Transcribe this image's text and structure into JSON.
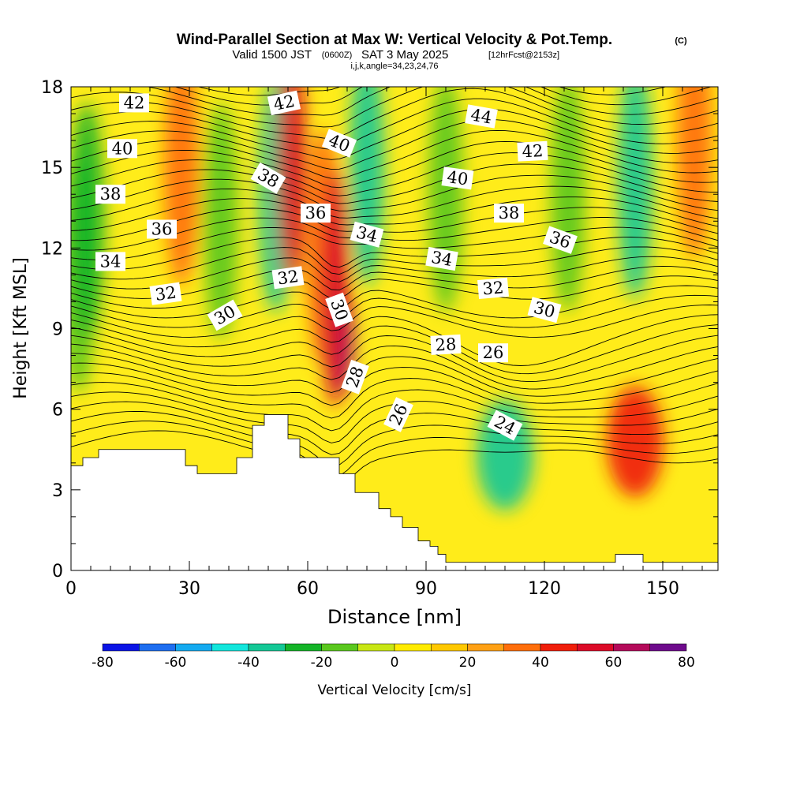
{
  "chart_data": {
    "type": "heatmap",
    "title": {
      "main": "Wind-Parallel Section at Max W: Vertical Velocity & Pot.Temp.",
      "copyright": "(C)",
      "valid_prefix": "Valid 1500 JST",
      "valid_utc": "(0600Z)",
      "valid_date": "SAT 3 May 2025",
      "forecast": "[12hrFcst@2153z]",
      "grid_info": "i,j,k,angle=34,23,24,76"
    },
    "xlabel": "Distance [nm]",
    "ylabel": "Height [Kft MSL]",
    "xlim": [
      0,
      164
    ],
    "ylim": [
      0,
      18
    ],
    "x_ticks": [
      0,
      30,
      60,
      90,
      120,
      150
    ],
    "y_ticks": [
      0,
      3,
      6,
      9,
      12,
      15,
      18
    ],
    "grid": false,
    "colorbar": {
      "label": "Vertical Velocity [cm/s]",
      "placement": "bottom",
      "tick_values": [
        -80,
        -60,
        -40,
        -20,
        0,
        20,
        40,
        60,
        80
      ],
      "tick_labels": [
        "-80",
        "-60",
        "-40",
        "-20",
        "0",
        "20",
        "40",
        "60",
        "80"
      ],
      "boundaries": [
        -80,
        -70,
        -60,
        -50,
        -40,
        -30,
        -20,
        -10,
        0,
        10,
        20,
        30,
        40,
        50,
        60,
        70,
        80
      ],
      "colors": [
        "#0a14e6",
        "#1e6ef0",
        "#14aaf0",
        "#12e6dc",
        "#14c896",
        "#14b428",
        "#5ac81e",
        "#c8e614",
        "#ffeb00",
        "#ffc800",
        "#ffa014",
        "#ff6e0a",
        "#f01e0a",
        "#dc0a28",
        "#b40a5a",
        "#6e0a8c"
      ]
    },
    "terrain_kft": [
      [
        0,
        3.9
      ],
      [
        3,
        4.2
      ],
      [
        7,
        4.5
      ],
      [
        29,
        3.9
      ],
      [
        32,
        3.6
      ],
      [
        42,
        4.2
      ],
      [
        46,
        5.4
      ],
      [
        49,
        5.8
      ],
      [
        55,
        4.9
      ],
      [
        58,
        4.2
      ],
      [
        68,
        3.6
      ],
      [
        72,
        2.9
      ],
      [
        78,
        2.3
      ],
      [
        81,
        2.0
      ],
      [
        84,
        1.6
      ],
      [
        88,
        1.1
      ],
      [
        91,
        0.9
      ],
      [
        93,
        0.6
      ],
      [
        95,
        0.3
      ],
      [
        98,
        0.3
      ],
      [
        137,
        0.3
      ],
      [
        138,
        0.6
      ],
      [
        143,
        0.6
      ],
      [
        145,
        0.3
      ],
      [
        164,
        0.3
      ]
    ],
    "vertical_velocity_features": [
      {
        "x": 2,
        "y": 11,
        "value": -20
      },
      {
        "x": 4,
        "y": 13,
        "value": -30
      },
      {
        "x": 28,
        "y": 15,
        "value": 30
      },
      {
        "x": 38,
        "y": 13,
        "value": -20
      },
      {
        "x": 52,
        "y": 14,
        "value": -40
      },
      {
        "x": 56,
        "y": 15,
        "value": 50
      },
      {
        "x": 64,
        "y": 12,
        "value": 30
      },
      {
        "x": 68,
        "y": 8.6,
        "value": 75
      },
      {
        "x": 67,
        "y": 10.5,
        "value": 50
      },
      {
        "x": 75,
        "y": 15,
        "value": -40
      },
      {
        "x": 95,
        "y": 14,
        "value": -20
      },
      {
        "x": 110,
        "y": 4.3,
        "value": -35
      },
      {
        "x": 126,
        "y": 14,
        "value": -20
      },
      {
        "x": 143,
        "y": 14.5,
        "value": -40
      },
      {
        "x": 143,
        "y": 4.8,
        "value": 45
      },
      {
        "x": 158,
        "y": 16,
        "value": 30
      }
    ],
    "theta_contour_labels": [
      {
        "value": "42",
        "x": 16,
        "y": 17.4,
        "angle": 0
      },
      {
        "value": "42",
        "x": 54,
        "y": 17.4,
        "angle": -12
      },
      {
        "value": "44",
        "x": 104,
        "y": 16.9,
        "angle": 10
      },
      {
        "value": "40",
        "x": 13,
        "y": 15.7,
        "angle": 0
      },
      {
        "value": "40",
        "x": 68,
        "y": 15.9,
        "angle": 22
      },
      {
        "value": "42",
        "x": 117,
        "y": 15.6,
        "angle": -3
      },
      {
        "value": "40",
        "x": 98,
        "y": 14.6,
        "angle": 8
      },
      {
        "value": "38",
        "x": 50,
        "y": 14.6,
        "angle": 30
      },
      {
        "value": "38",
        "x": 10,
        "y": 14.0,
        "angle": 0
      },
      {
        "value": "36",
        "x": 62,
        "y": 13.3,
        "angle": 0
      },
      {
        "value": "38",
        "x": 111,
        "y": 13.3,
        "angle": 0
      },
      {
        "value": "36",
        "x": 23,
        "y": 12.7,
        "angle": 0
      },
      {
        "value": "34",
        "x": 75,
        "y": 12.5,
        "angle": 15
      },
      {
        "value": "36",
        "x": 124,
        "y": 12.3,
        "angle": 20
      },
      {
        "value": "34",
        "x": 94,
        "y": 11.6,
        "angle": 10
      },
      {
        "value": "34",
        "x": 10,
        "y": 11.5,
        "angle": 0
      },
      {
        "value": "32",
        "x": 55,
        "y": 10.9,
        "angle": -8
      },
      {
        "value": "32",
        "x": 107,
        "y": 10.5,
        "angle": -5
      },
      {
        "value": "32",
        "x": 24,
        "y": 10.3,
        "angle": -8
      },
      {
        "value": "30",
        "x": 68,
        "y": 9.7,
        "angle": 70
      },
      {
        "value": "30",
        "x": 120,
        "y": 9.7,
        "angle": 15
      },
      {
        "value": "30",
        "x": 39,
        "y": 9.5,
        "angle": -30
      },
      {
        "value": "28",
        "x": 95,
        "y": 8.4,
        "angle": -3
      },
      {
        "value": "26",
        "x": 107,
        "y": 8.1,
        "angle": 0
      },
      {
        "value": "28",
        "x": 72,
        "y": 7.2,
        "angle": -70
      },
      {
        "value": "26",
        "x": 83,
        "y": 5.8,
        "angle": -65
      },
      {
        "value": "24",
        "x": 110,
        "y": 5.4,
        "angle": 28
      }
    ]
  }
}
